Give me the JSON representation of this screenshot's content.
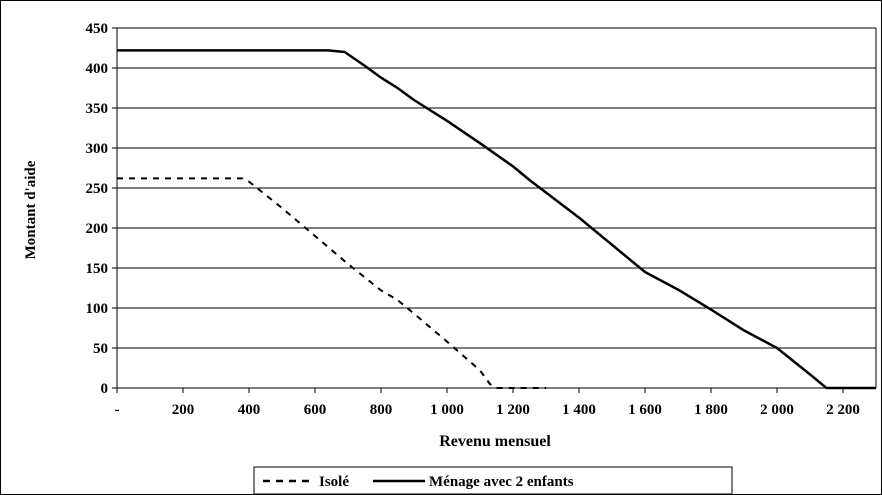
{
  "chart_data": {
    "type": "line",
    "title": "",
    "xlabel": "Revenu mensuel",
    "ylabel": "Montant d'aide",
    "xlim": [
      0,
      2300
    ],
    "ylim": [
      0,
      450
    ],
    "x_ticks": [
      0,
      200,
      400,
      600,
      800,
      1000,
      1200,
      1400,
      1600,
      1800,
      2000,
      2200
    ],
    "x_tick_labels": [
      "-",
      "200",
      "400",
      "600",
      "800",
      "1 000",
      "1 200",
      "1 400",
      "1 600",
      "1 800",
      "2 000",
      "2 200"
    ],
    "y_ticks": [
      0,
      50,
      100,
      150,
      200,
      250,
      300,
      350,
      400,
      450
    ],
    "y_tick_labels": [
      "0",
      "50",
      "100",
      "150",
      "200",
      "250",
      "300",
      "350",
      "400",
      "450"
    ],
    "grid": true,
    "legend_position": "bottom",
    "series": [
      {
        "name": "Isolé",
        "style": "dashed",
        "color": "#000000",
        "x": [
          0,
          380,
          400,
          500,
          600,
          700,
          800,
          850,
          900,
          1000,
          1100,
          1130,
          1150,
          1300
        ],
        "y": [
          262,
          262,
          258,
          225,
          190,
          155,
          122,
          110,
          93,
          58,
          22,
          5,
          0,
          0
        ]
      },
      {
        "name": "Ménage avec 2 enfants",
        "style": "solid",
        "color": "#000000",
        "x": [
          0,
          640,
          690,
          750,
          800,
          850,
          900,
          1000,
          1100,
          1200,
          1250,
          1400,
          1600,
          1700,
          1800,
          1900,
          2000,
          2100,
          2150,
          2200,
          2300
        ],
        "y": [
          422,
          422,
          420,
          403,
          388,
          375,
          360,
          334,
          306,
          277,
          260,
          213,
          145,
          123,
          98,
          72,
          50,
          17,
          0,
          0,
          0
        ]
      }
    ]
  }
}
